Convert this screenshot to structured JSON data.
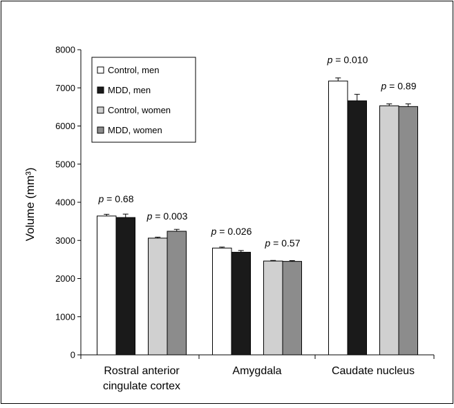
{
  "chart_data": {
    "type": "bar",
    "ylabel": "Volume (mm³)",
    "ylim": [
      0,
      8000
    ],
    "yticks": [
      "0",
      "1000",
      "2000",
      "3000",
      "4000",
      "5000",
      "6000",
      "7000",
      "8000"
    ],
    "grid": false,
    "legend_position": "top-left",
    "groups": [
      {
        "label_lines": [
          "Rostral anterior",
          "cingulate cortex"
        ]
      },
      {
        "label_lines": [
          "Amygdala"
        ]
      },
      {
        "label_lines": [
          "Caudate nucleus"
        ]
      }
    ],
    "series": [
      {
        "name": "Control, men",
        "color": "#ffffff",
        "values": [
          3640,
          2800,
          7180
        ],
        "errors": [
          45,
          25,
          80
        ]
      },
      {
        "name": "MDD, men",
        "color": "#1a1a1a",
        "values": [
          3600,
          2690,
          6660
        ],
        "errors": [
          90,
          45,
          170
        ]
      },
      {
        "name": "Control, women",
        "color": "#d0d0d0",
        "values": [
          3060,
          2460,
          6530
        ],
        "errors": [
          25,
          15,
          50
        ]
      },
      {
        "name": "MDD, women",
        "color": "#8c8c8c",
        "values": [
          3240,
          2450,
          6510
        ],
        "errors": [
          50,
          20,
          70
        ]
      }
    ],
    "annotations": [
      {
        "prefix": "p",
        "value": " = 0.68",
        "group": 0,
        "pair": "men",
        "y": 4000
      },
      {
        "prefix": "p",
        "value": " = 0.003",
        "group": 0,
        "pair": "women",
        "y": 3550
      },
      {
        "prefix": "p",
        "value": " = 0.026",
        "group": 1,
        "pair": "men",
        "y": 3150
      },
      {
        "prefix": "p",
        "value": " = 0.57",
        "group": 1,
        "pair": "women",
        "y": 2840
      },
      {
        "prefix": "p",
        "value": " = 0.010",
        "group": 2,
        "pair": "men",
        "y": 7650
      },
      {
        "prefix": "p",
        "value": " = 0.89",
        "group": 2,
        "pair": "women",
        "y": 6960
      }
    ]
  }
}
